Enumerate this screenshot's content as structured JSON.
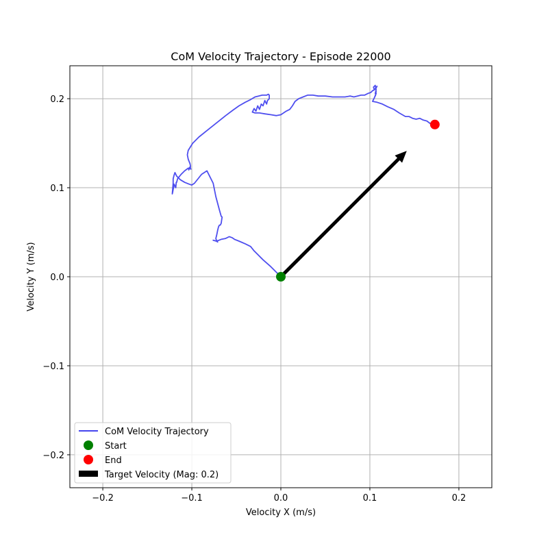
{
  "chart_data": {
    "type": "line",
    "title": "CoM Velocity Trajectory - Episode 22000",
    "xlabel": "Velocity X (m/s)",
    "ylabel": "Velocity Y (m/s)",
    "xlim": [
      -0.237,
      0.237
    ],
    "ylim": [
      -0.237,
      0.237
    ],
    "xticks": [
      -0.2,
      -0.1,
      0.0,
      0.1,
      0.2
    ],
    "yticks": [
      -0.2,
      -0.1,
      0.0,
      0.1,
      0.2
    ],
    "xtick_labels": [
      "−0.2",
      "−0.1",
      "0.0",
      "0.1",
      "0.2"
    ],
    "ytick_labels": [
      "−0.2",
      "−0.1",
      "0.0",
      "0.1",
      "0.2"
    ],
    "grid": true,
    "legend_position": "lower-left",
    "series": [
      {
        "name": "CoM Velocity Trajectory",
        "color": "#4444ee",
        "x": [
          0.0,
          -0.005,
          -0.012,
          -0.02,
          -0.025,
          -0.03,
          -0.034,
          -0.04,
          -0.047,
          -0.052,
          -0.055,
          -0.058,
          -0.062,
          -0.067,
          -0.072,
          -0.076,
          -0.0725,
          -0.071,
          -0.072,
          -0.073,
          -0.072,
          -0.071,
          -0.07,
          -0.069,
          -0.068,
          -0.067,
          -0.066,
          -0.067,
          -0.069,
          -0.073,
          -0.076,
          -0.083,
          -0.089,
          -0.093,
          -0.097,
          -0.1,
          -0.103,
          -0.108,
          -0.113,
          -0.117,
          -0.119,
          -0.12,
          -0.121,
          -0.121,
          -0.122,
          -0.1215,
          -0.121,
          -0.1205,
          -0.12,
          -0.118,
          -0.1175,
          -0.117,
          -0.116,
          -0.112,
          -0.108,
          -0.104,
          -0.101,
          -0.1025,
          -0.1035,
          -0.103,
          -0.1015,
          -0.103,
          -0.1015,
          -0.102,
          -0.104,
          -0.105,
          -0.104,
          -0.099,
          -0.092,
          -0.082,
          -0.072,
          -0.062,
          -0.054,
          -0.047,
          -0.04,
          -0.034,
          -0.029,
          -0.025,
          -0.021,
          -0.018,
          -0.016,
          -0.014,
          -0.013,
          -0.013,
          -0.015,
          -0.016,
          -0.018,
          -0.02,
          -0.022,
          -0.024,
          -0.026,
          -0.028,
          -0.03,
          -0.032,
          -0.029,
          -0.024,
          -0.018,
          -0.011,
          -0.005,
          0.0,
          0.006,
          0.01,
          0.013,
          0.016,
          0.02,
          0.025,
          0.03,
          0.036,
          0.042,
          0.05,
          0.058,
          0.066,
          0.072,
          0.078,
          0.082,
          0.086,
          0.09,
          0.094,
          0.098,
          0.101,
          0.103,
          0.105,
          0.107,
          0.108,
          0.105,
          0.104,
          0.106,
          0.107,
          0.106,
          0.107,
          0.106,
          0.107,
          0.105,
          0.103,
          0.108,
          0.114,
          0.12,
          0.127,
          0.133,
          0.14,
          0.144,
          0.148,
          0.152,
          0.156,
          0.16,
          0.164,
          0.168,
          0.172,
          0.173
        ],
        "y": [
          0.0,
          0.005,
          0.012,
          0.019,
          0.024,
          0.029,
          0.034,
          0.037,
          0.04,
          0.042,
          0.044,
          0.045,
          0.043,
          0.042,
          0.04,
          0.041,
          0.04,
          0.039,
          0.04,
          0.043,
          0.047,
          0.052,
          0.056,
          0.058,
          0.058,
          0.06,
          0.067,
          0.068,
          0.075,
          0.09,
          0.105,
          0.119,
          0.115,
          0.11,
          0.105,
          0.103,
          0.104,
          0.106,
          0.109,
          0.113,
          0.117,
          0.114,
          0.11,
          0.105,
          0.093,
          0.095,
          0.098,
          0.1,
          0.104,
          0.1,
          0.106,
          0.106,
          0.11,
          0.115,
          0.119,
          0.122,
          0.121,
          0.123,
          0.12,
          0.122,
          0.123,
          0.121,
          0.124,
          0.127,
          0.132,
          0.137,
          0.142,
          0.15,
          0.157,
          0.165,
          0.173,
          0.181,
          0.187,
          0.192,
          0.196,
          0.199,
          0.202,
          0.203,
          0.204,
          0.204,
          0.204,
          0.205,
          0.204,
          0.2,
          0.198,
          0.194,
          0.198,
          0.192,
          0.194,
          0.188,
          0.192,
          0.186,
          0.189,
          0.185,
          0.184,
          0.184,
          0.183,
          0.182,
          0.181,
          0.182,
          0.186,
          0.188,
          0.192,
          0.197,
          0.2,
          0.202,
          0.204,
          0.204,
          0.203,
          0.203,
          0.202,
          0.202,
          0.202,
          0.203,
          0.202,
          0.203,
          0.204,
          0.204,
          0.206,
          0.207,
          0.209,
          0.21,
          0.212,
          0.214,
          0.21,
          0.213,
          0.215,
          0.21,
          0.206,
          0.208,
          0.203,
          0.206,
          0.201,
          0.197,
          0.196,
          0.194,
          0.191,
          0.188,
          0.184,
          0.18,
          0.18,
          0.178,
          0.177,
          0.178,
          0.176,
          0.175,
          0.172,
          0.171,
          0.171
        ]
      }
    ],
    "start": {
      "label": "Start",
      "x": 0.0,
      "y": 0.0,
      "color": "#008000"
    },
    "end": {
      "label": "End",
      "x": 0.173,
      "y": 0.171,
      "color": "#ff0000"
    },
    "target_velocity": {
      "label": "Target Velocity (Mag: 0.2)",
      "x0": 0.0,
      "y0": 0.0,
      "dx": 0.1414,
      "dy": 0.1414,
      "color": "#000000"
    }
  }
}
